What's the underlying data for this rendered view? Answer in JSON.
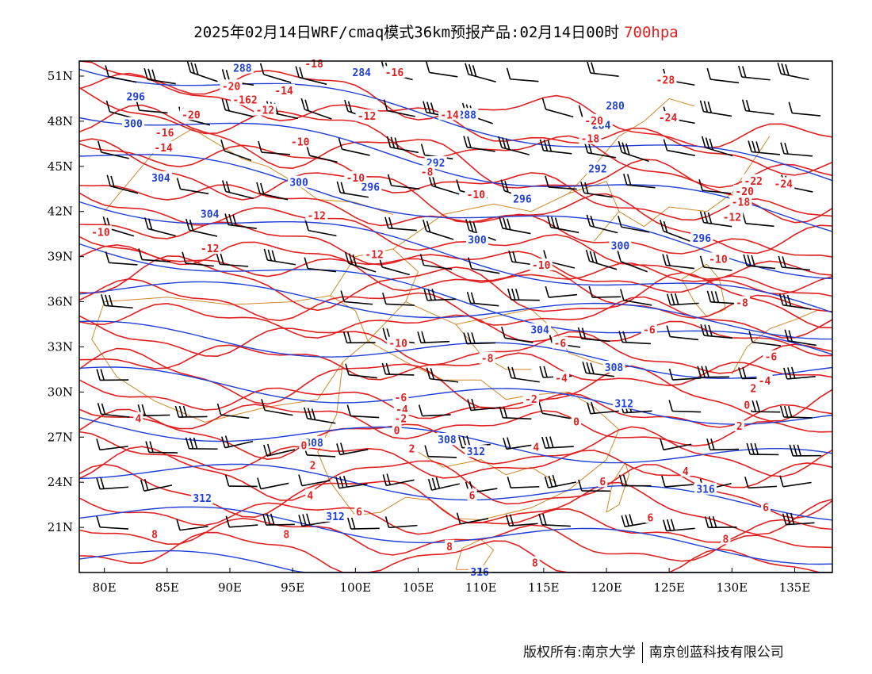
{
  "title": {
    "text": "2025年02月14日WRF/cmaq模式36km预报产品:02月14日00时",
    "level": "700hpa"
  },
  "footer": {
    "left": "版权所有:南京大学",
    "right": "南京创蓝科技有限公司"
  },
  "colors": {
    "geopotential": "#1f3fd6",
    "temperature": "#e02020",
    "borders": "#d2882a",
    "wind": "#000000"
  },
  "map": {
    "lon_range": [
      78,
      138
    ],
    "lat_range": [
      18,
      52
    ],
    "x_ticks": [
      "80E",
      "85E",
      "90E",
      "95E",
      "100E",
      "105E",
      "110E",
      "115E",
      "120E",
      "125E",
      "130E",
      "135E"
    ],
    "x_tick_values": [
      80,
      85,
      90,
      95,
      100,
      105,
      110,
      115,
      120,
      125,
      130,
      135
    ],
    "y_ticks": [
      "51N",
      "48N",
      "45N",
      "42N",
      "39N",
      "36N",
      "33N",
      "30N",
      "27N",
      "24N",
      "21N"
    ],
    "y_tick_values": [
      51,
      48,
      45,
      42,
      39,
      36,
      33,
      30,
      27,
      24,
      21
    ]
  },
  "chart_data": {
    "type": "map",
    "geopotential_labels": [
      {
        "text": "288",
        "lon": 91,
        "lat": 51.5
      },
      {
        "text": "284",
        "lon": 100.5,
        "lat": 51.2
      },
      {
        "text": "296",
        "lon": 82.5,
        "lat": 49.6
      },
      {
        "text": "300",
        "lon": 82.3,
        "lat": 47.8
      },
      {
        "text": "288",
        "lon": 108.9,
        "lat": 48.4
      },
      {
        "text": "280",
        "lon": 120.7,
        "lat": 49
      },
      {
        "text": "284",
        "lon": 119.6,
        "lat": 47.7
      },
      {
        "text": "292",
        "lon": 106.4,
        "lat": 45.2
      },
      {
        "text": "292",
        "lon": 119.3,
        "lat": 44.8
      },
      {
        "text": "304",
        "lon": 84.5,
        "lat": 44.2
      },
      {
        "text": "300",
        "lon": 95.5,
        "lat": 43.9
      },
      {
        "text": "296",
        "lon": 101.2,
        "lat": 43.6
      },
      {
        "text": "296",
        "lon": 113.3,
        "lat": 42.8
      },
      {
        "text": "304",
        "lon": 88.4,
        "lat": 41.8
      },
      {
        "text": "300",
        "lon": 109.7,
        "lat": 40.1
      },
      {
        "text": "300",
        "lon": 121.1,
        "lat": 39.7
      },
      {
        "text": "296",
        "lon": 127.6,
        "lat": 40.2
      },
      {
        "text": "304",
        "lon": 114.7,
        "lat": 34.1
      },
      {
        "text": "308",
        "lon": 120.6,
        "lat": 31.6
      },
      {
        "text": "312",
        "lon": 121.4,
        "lat": 29.2
      },
      {
        "text": "308",
        "lon": 96.7,
        "lat": 26.6
      },
      {
        "text": "308",
        "lon": 107.3,
        "lat": 26.8
      },
      {
        "text": "312",
        "lon": 109.6,
        "lat": 26
      },
      {
        "text": "316",
        "lon": 127.9,
        "lat": 23.5
      },
      {
        "text": "312",
        "lon": 87.8,
        "lat": 22.9
      },
      {
        "text": "312",
        "lon": 98.4,
        "lat": 21.7
      },
      {
        "text": "316",
        "lon": 109.9,
        "lat": 18
      }
    ],
    "temperature_labels": [
      {
        "text": "-18",
        "lon": 96.7,
        "lat": 51.8
      },
      {
        "text": "-16",
        "lon": 103.1,
        "lat": 51.2
      },
      {
        "text": "-20",
        "lon": 90.1,
        "lat": 50.3
      },
      {
        "text": "-14",
        "lon": 94.3,
        "lat": 50
      },
      {
        "text": "-162",
        "lon": 91.2,
        "lat": 49.4
      },
      {
        "text": "-12",
        "lon": 92.8,
        "lat": 48.7
      },
      {
        "text": "-20",
        "lon": 86.9,
        "lat": 48.4
      },
      {
        "text": "-12",
        "lon": 100.9,
        "lat": 48.3
      },
      {
        "text": "-14",
        "lon": 107.5,
        "lat": 48.4
      },
      {
        "text": "-16",
        "lon": 84.8,
        "lat": 47.2
      },
      {
        "text": "-14",
        "lon": 84.7,
        "lat": 46.2
      },
      {
        "text": "-10",
        "lon": 95.6,
        "lat": 46.6
      },
      {
        "text": "-20",
        "lon": 119,
        "lat": 48
      },
      {
        "text": "-18",
        "lon": 118.7,
        "lat": 46.8
      },
      {
        "text": "-24",
        "lon": 124.9,
        "lat": 48.2
      },
      {
        "text": "-28",
        "lon": 124.7,
        "lat": 50.7
      },
      {
        "text": "-10",
        "lon": 100,
        "lat": 44.2
      },
      {
        "text": "-8",
        "lon": 105.7,
        "lat": 44.6
      },
      {
        "text": "-10",
        "lon": 109.6,
        "lat": 43.1
      },
      {
        "text": "-22",
        "lon": 131.7,
        "lat": 44
      },
      {
        "text": "-24",
        "lon": 134.1,
        "lat": 43.8
      },
      {
        "text": "-20",
        "lon": 131,
        "lat": 43.3
      },
      {
        "text": "-18",
        "lon": 130.7,
        "lat": 42.6
      },
      {
        "text": "-12",
        "lon": 96.9,
        "lat": 41.7
      },
      {
        "text": "-12",
        "lon": 130,
        "lat": 41.6
      },
      {
        "text": "-10",
        "lon": 79.7,
        "lat": 40.6
      },
      {
        "text": "-12",
        "lon": 88.4,
        "lat": 39.5
      },
      {
        "text": "-12",
        "lon": 101.5,
        "lat": 39.1
      },
      {
        "text": "-10",
        "lon": 114.8,
        "lat": 38.4
      },
      {
        "text": "-10",
        "lon": 128.9,
        "lat": 38.8
      },
      {
        "text": "-8",
        "lon": 130.8,
        "lat": 35.9
      },
      {
        "text": "-10",
        "lon": 103.4,
        "lat": 33.2
      },
      {
        "text": "-8",
        "lon": 110.5,
        "lat": 32.2
      },
      {
        "text": "-6",
        "lon": 116.3,
        "lat": 33.2
      },
      {
        "text": "-6",
        "lon": 123.4,
        "lat": 34.1
      },
      {
        "text": "-6",
        "lon": 133.1,
        "lat": 32.3
      },
      {
        "text": "-4",
        "lon": 116.4,
        "lat": 30.9
      },
      {
        "text": "-4",
        "lon": 132.6,
        "lat": 30.7
      },
      {
        "text": "2",
        "lon": 131.7,
        "lat": 30.2
      },
      {
        "text": "-6",
        "lon": 103.6,
        "lat": 29.6
      },
      {
        "text": "-4",
        "lon": 103.7,
        "lat": 28.8
      },
      {
        "text": "-2",
        "lon": 103.6,
        "lat": 28.2
      },
      {
        "text": "0",
        "lon": 103.3,
        "lat": 27.4
      },
      {
        "text": "-2",
        "lon": 114,
        "lat": 29.5
      },
      {
        "text": "0",
        "lon": 131.2,
        "lat": 29.1
      },
      {
        "text": "0",
        "lon": 117.6,
        "lat": 28
      },
      {
        "text": "2",
        "lon": 130.6,
        "lat": 27.7
      },
      {
        "text": "2",
        "lon": 104.5,
        "lat": 26.2
      },
      {
        "text": "0",
        "lon": 95.9,
        "lat": 26.4
      },
      {
        "text": "2",
        "lon": 96.6,
        "lat": 25.1
      },
      {
        "text": "4",
        "lon": 82.7,
        "lat": 28.2
      },
      {
        "text": "4",
        "lon": 96.4,
        "lat": 23.1
      },
      {
        "text": "4",
        "lon": 114.4,
        "lat": 26.3
      },
      {
        "text": "4",
        "lon": 126.3,
        "lat": 24.7
      },
      {
        "text": "6",
        "lon": 109.3,
        "lat": 23.1
      },
      {
        "text": "6",
        "lon": 119.7,
        "lat": 24
      },
      {
        "text": "6",
        "lon": 123.5,
        "lat": 21.6
      },
      {
        "text": "6",
        "lon": 100.3,
        "lat": 22
      },
      {
        "text": "6",
        "lon": 132.7,
        "lat": 22.3
      },
      {
        "text": "8",
        "lon": 84,
        "lat": 20.5
      },
      {
        "text": "8",
        "lon": 94.5,
        "lat": 20.5
      },
      {
        "text": "8",
        "lon": 107.5,
        "lat": 19.7
      },
      {
        "text": "8",
        "lon": 114.3,
        "lat": 18.6
      },
      {
        "text": "8",
        "lon": 129.5,
        "lat": 20.2
      }
    ]
  }
}
